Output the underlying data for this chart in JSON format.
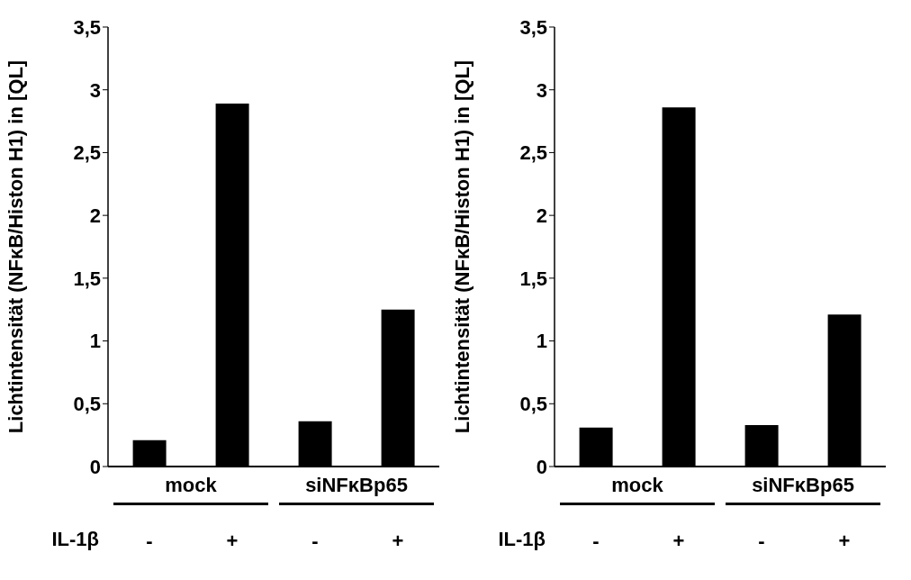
{
  "chart_data": [
    {
      "type": "bar",
      "ylabel": "Lichtintensität (NFκB/Histon H1) in [QL]",
      "categories": [
        "-",
        "+",
        "-",
        "+"
      ],
      "values": [
        0.21,
        2.89,
        0.36,
        1.25
      ],
      "color": "#000000",
      "ylim": [
        0,
        3.5
      ],
      "yticks": [
        0,
        {
          "value": 0.5,
          "label": "0,5"
        },
        1,
        {
          "value": 1.5,
          "label": "1,5"
        },
        2,
        {
          "value": 2.5,
          "label": "2,5"
        },
        3,
        {
          "value": 3.5,
          "label": "3,5"
        }
      ],
      "annotations": [
        "mock",
        "siNFκBp65",
        "IL-1β"
      ]
    },
    {
      "type": "bar",
      "ylabel": "Lichtintensität (NFκB/Histon H1) in [QL]",
      "categories": [
        "-",
        "+",
        "-",
        "+"
      ],
      "values": [
        0.31,
        2.86,
        0.33,
        1.21
      ],
      "color": "#000000",
      "ylim": [
        0,
        3.5
      ],
      "yticks": [
        0,
        {
          "value": 0.5,
          "label": "0,5"
        },
        1,
        {
          "value": 1.5,
          "label": "1,5"
        },
        2,
        {
          "value": 2.5,
          "label": "2,5"
        },
        3,
        {
          "value": 3.5,
          "label": "3,5"
        }
      ],
      "annotations": [
        "mock",
        "siNFκBp65",
        "IL-1β"
      ]
    }
  ]
}
